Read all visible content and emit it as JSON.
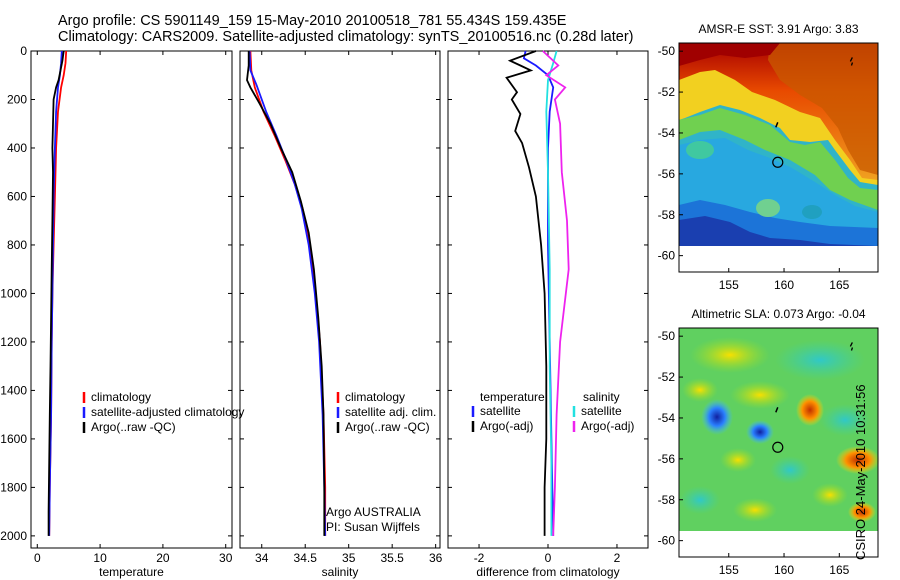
{
  "header": {
    "line1": "Argo profile: CS 5901149_159 15-May-2010 20100518_781 55.434S 159.435E",
    "line2": "Climatology: CARS2009. Satellite-adjusted climatology: synTS_20100516.nc (0.28d later)"
  },
  "stamp": "CSIRO 24-May-2010 10:31:56",
  "colors": {
    "red": "#ff0000",
    "blue": "#1a1aff",
    "black": "#000000",
    "cyan": "#22e0e0",
    "magenta": "#ee22ee"
  },
  "chart_data": [
    {
      "type": "line",
      "panel": "temperature",
      "xlabel": "temperature",
      "ylabel": "",
      "xlim": [
        -1,
        31
      ],
      "ylim": [
        2050,
        0
      ],
      "xticks": [
        0,
        10,
        20,
        30
      ],
      "yticks": [
        0,
        200,
        400,
        600,
        800,
        1000,
        1200,
        1400,
        1600,
        1800,
        2000
      ],
      "series": [
        {
          "name": "climatology",
          "color": "red",
          "points": [
            [
              4.6,
              0
            ],
            [
              4.5,
              50
            ],
            [
              4.2,
              100
            ],
            [
              3.8,
              150
            ],
            [
              3.3,
              250
            ],
            [
              3.0,
              400
            ],
            [
              2.8,
              600
            ],
            [
              2.6,
              800
            ],
            [
              2.4,
              1000
            ],
            [
              2.3,
              1200
            ],
            [
              2.2,
              1500
            ],
            [
              2.0,
              1800
            ],
            [
              1.9,
              2000
            ]
          ]
        },
        {
          "name": "satellite-adjusted climatology",
          "color": "blue",
          "points": [
            [
              3.9,
              0
            ],
            [
              3.8,
              50
            ],
            [
              3.6,
              100
            ],
            [
              3.3,
              150
            ],
            [
              3.0,
              250
            ],
            [
              2.8,
              400
            ],
            [
              2.6,
              600
            ],
            [
              2.5,
              800
            ],
            [
              2.4,
              1000
            ],
            [
              2.3,
              1200
            ],
            [
              2.2,
              1500
            ],
            [
              2.0,
              1800
            ],
            [
              1.9,
              2000
            ]
          ]
        },
        {
          "name": "Argo(..raw -QC)",
          "color": "black",
          "points": [
            [
              4.2,
              0
            ],
            [
              4.0,
              40
            ],
            [
              3.7,
              80
            ],
            [
              3.4,
              120
            ],
            [
              3.0,
              150
            ],
            [
              2.6,
              200
            ],
            [
              2.5,
              300
            ],
            [
              2.4,
              400
            ],
            [
              2.5,
              500
            ],
            [
              2.4,
              700
            ],
            [
              2.3,
              900
            ],
            [
              2.2,
              1100
            ],
            [
              2.1,
              1300
            ],
            [
              2.0,
              1500
            ],
            [
              1.9,
              1700
            ],
            [
              1.8,
              1900
            ],
            [
              1.8,
              2000
            ]
          ]
        }
      ],
      "legend": {
        "entries": [
          "climatology",
          "satellite-adjusted climatology",
          "Argo(..raw -QC)"
        ],
        "colors": [
          "red",
          "blue",
          "black"
        ]
      }
    },
    {
      "type": "line",
      "panel": "salinity",
      "xlabel": "salinity",
      "xlim": [
        33.75,
        36.05
      ],
      "ylim": [
        2050,
        0
      ],
      "xticks": [
        34,
        34.5,
        35,
        35.5,
        36
      ],
      "series": [
        {
          "name": "climatology",
          "color": "red",
          "points": [
            [
              33.87,
              0
            ],
            [
              33.88,
              80
            ],
            [
              33.92,
              150
            ],
            [
              34.02,
              250
            ],
            [
              34.15,
              350
            ],
            [
              34.27,
              450
            ],
            [
              34.38,
              550
            ],
            [
              34.47,
              650
            ],
            [
              34.55,
              800
            ],
            [
              34.62,
              1000
            ],
            [
              34.67,
              1200
            ],
            [
              34.71,
              1500
            ],
            [
              34.73,
              1800
            ],
            [
              34.73,
              2000
            ]
          ]
        },
        {
          "name": "satellite adj. clim.",
          "color": "blue",
          "points": [
            [
              33.86,
              0
            ],
            [
              33.87,
              80
            ],
            [
              33.94,
              140
            ],
            [
              34.05,
              250
            ],
            [
              34.17,
              350
            ],
            [
              34.28,
              450
            ],
            [
              34.38,
              550
            ],
            [
              34.46,
              650
            ],
            [
              34.54,
              800
            ],
            [
              34.61,
              1000
            ],
            [
              34.66,
              1200
            ],
            [
              34.7,
              1500
            ],
            [
              34.72,
              1800
            ],
            [
              34.73,
              2000
            ]
          ]
        },
        {
          "name": "Argo(..raw -QC)",
          "color": "black",
          "points": [
            [
              33.85,
              0
            ],
            [
              33.85,
              60
            ],
            [
              33.83,
              120
            ],
            [
              33.87,
              150
            ],
            [
              33.98,
              220
            ],
            [
              34.1,
              300
            ],
            [
              34.22,
              400
            ],
            [
              34.35,
              500
            ],
            [
              34.45,
              620
            ],
            [
              34.54,
              750
            ],
            [
              34.6,
              900
            ],
            [
              34.65,
              1100
            ],
            [
              34.69,
              1300
            ],
            [
              34.71,
              1500
            ],
            [
              34.72,
              1800
            ],
            [
              34.72,
              2000
            ]
          ]
        }
      ],
      "legend": {
        "entries": [
          "climatology",
          "satellite adj. clim.",
          "Argo(..raw -QC)"
        ],
        "colors": [
          "red",
          "blue",
          "black"
        ]
      },
      "annotation": [
        "Argo AUSTRALIA",
        "PI: Susan Wijffels"
      ]
    },
    {
      "type": "line",
      "panel": "difference",
      "xlabel": "difference from climatology",
      "xlim": [
        -2.9,
        2.9
      ],
      "ylim": [
        2050,
        0
      ],
      "xticks": [
        -2,
        0,
        2
      ],
      "series": [
        {
          "name": "temperature satellite",
          "color": "blue",
          "points": [
            [
              -0.65,
              0
            ],
            [
              -0.7,
              30
            ],
            [
              -0.35,
              60
            ],
            [
              0.0,
              100
            ],
            [
              0.15,
              150
            ],
            [
              0.05,
              250
            ],
            [
              0.0,
              400
            ],
            [
              0.0,
              800
            ],
            [
              0.05,
              1200
            ],
            [
              0.1,
              1600
            ],
            [
              0.15,
              2000
            ]
          ]
        },
        {
          "name": "temperature Argo(-adj)",
          "color": "black",
          "points": [
            [
              -0.35,
              0
            ],
            [
              -1.1,
              40
            ],
            [
              -0.8,
              60
            ],
            [
              -0.5,
              80
            ],
            [
              -1.2,
              110
            ],
            [
              -0.9,
              170
            ],
            [
              -1.05,
              200
            ],
            [
              -0.8,
              260
            ],
            [
              -0.95,
              330
            ],
            [
              -0.75,
              380
            ],
            [
              -0.55,
              480
            ],
            [
              -0.35,
              600
            ],
            [
              -0.2,
              800
            ],
            [
              -0.1,
              1000
            ],
            [
              -0.05,
              1300
            ],
            [
              -0.05,
              1600
            ],
            [
              -0.1,
              1800
            ],
            [
              -0.1,
              2000
            ]
          ]
        },
        {
          "name": "salinity satellite",
          "color": "cyan",
          "points": [
            [
              0.25,
              0
            ],
            [
              0.15,
              50
            ],
            [
              0.0,
              120
            ],
            [
              -0.05,
              250
            ],
            [
              0.0,
              500
            ],
            [
              0.05,
              900
            ],
            [
              0.05,
              1300
            ],
            [
              0.1,
              1700
            ],
            [
              0.1,
              2000
            ]
          ]
        },
        {
          "name": "salinity Argo(-adj)",
          "color": "magenta",
          "points": [
            [
              -0.15,
              0
            ],
            [
              0.3,
              60
            ],
            [
              -0.05,
              100
            ],
            [
              0.5,
              150
            ],
            [
              0.2,
              200
            ],
            [
              0.35,
              300
            ],
            [
              0.4,
              500
            ],
            [
              0.55,
              700
            ],
            [
              0.6,
              900
            ],
            [
              0.35,
              1200
            ],
            [
              0.25,
              1500
            ],
            [
              0.2,
              1800
            ],
            [
              0.15,
              2000
            ]
          ]
        }
      ],
      "legend": {
        "headers": [
          "temperature",
          "salinity"
        ],
        "entries": [
          "satellite",
          "Argo(-adj)",
          "satellite",
          "Argo(-adj)"
        ],
        "colors": [
          "blue",
          "black",
          "cyan",
          "magenta"
        ]
      }
    },
    {
      "type": "heatmap",
      "panel": "sst-map",
      "title": "AMSR-E SST: 3.91 Argo: 3.83",
      "xlim": [
        150.5,
        168.5
      ],
      "ylim": [
        -60.8,
        -49.6
      ],
      "xticks": [
        155,
        160,
        165
      ],
      "yticks": [
        -50,
        -52,
        -54,
        -56,
        -58,
        -60
      ],
      "argo_position": [
        159.435,
        -55.434
      ]
    },
    {
      "type": "heatmap",
      "panel": "sla-map",
      "title": "Altimetric SLA: 0.073 Argo: -0.04",
      "xlim": [
        150.5,
        168.5
      ],
      "ylim": [
        -60.8,
        -49.6
      ],
      "xticks": [
        155,
        160,
        165
      ],
      "yticks": [
        -50,
        -52,
        -54,
        -56,
        -58,
        -60
      ],
      "argo_position": [
        159.435,
        -55.434
      ]
    }
  ]
}
